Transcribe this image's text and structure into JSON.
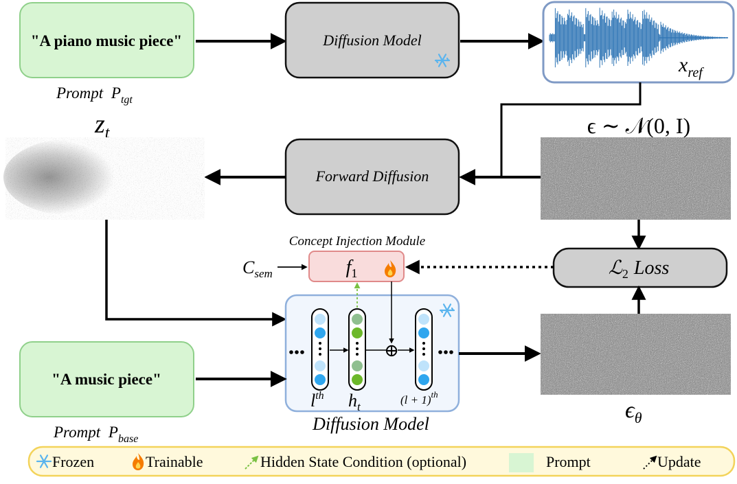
{
  "prompt_target": {
    "text": "\"A piano music piece\"",
    "caption": "Prompt",
    "symbol": "P",
    "subscript": "tgt"
  },
  "diffusion_model_top": {
    "label": "Diffusion Model"
  },
  "reference_audio": {
    "symbol": "x",
    "subscript": "ref"
  },
  "noise": {
    "label": "ϵ ∼ 𝒩(0, I)"
  },
  "forward_diffusion": {
    "label": "Forward Diffusion"
  },
  "latent": {
    "symbol": "z",
    "subscript": "t"
  },
  "concept_injection": {
    "title": "Concept Injection Module",
    "module": "f",
    "module_subscript": "1",
    "input": "C",
    "input_subscript": "sem"
  },
  "loss": {
    "script": "ℒ",
    "subscript": "2",
    "word": "Loss"
  },
  "diffusion_model_bottom": {
    "label": "Diffusion Model",
    "layer_l": "l",
    "layer_l_sup": "th",
    "hidden": "h",
    "hidden_sub": "t",
    "layer_next": "(l + 1)",
    "layer_next_sup": "th",
    "plus": "⊕"
  },
  "prompt_base": {
    "text": "\"A music piece\"",
    "caption": "Prompt",
    "symbol": "P",
    "subscript": "base"
  },
  "predicted_noise": {
    "symbol": "ϵ",
    "subscript": "θ"
  },
  "legend": {
    "frozen": "Frozen",
    "trainable": "Trainable",
    "hidden_state": "Hidden State Condition (optional)",
    "prompt": "Prompt",
    "update": "Update"
  },
  "colors": {
    "prompt_fill": "#d8f5d3",
    "prompt_stroke": "#8fd08a",
    "model_fill": "#cfcfcf",
    "frozen": "#5ab4ee",
    "audio_wave": "#2e74b5",
    "module_fill": "#f9dcdc",
    "module_stroke": "#e08a8a",
    "legend_fill": "#fff9dc",
    "legend_stroke": "#f3d35a",
    "hidden_arrow": "#7ac143"
  }
}
